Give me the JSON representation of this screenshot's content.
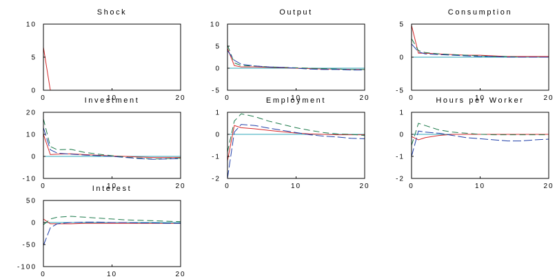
{
  "colors": {
    "red": "#d62728",
    "green": "#1b7a4a",
    "blue": "#1f3ea8",
    "cyan": "#28a6b8",
    "axis": "#000000"
  },
  "chart_data": [
    {
      "type": "line",
      "title": "Shock",
      "xlim": [
        0,
        20
      ],
      "ylim": [
        0,
        10
      ],
      "xticks": [
        "0",
        "10",
        "20"
      ],
      "yticks": [
        "0",
        "5",
        "10"
      ],
      "series": [
        {
          "color": "red",
          "dash": "solid",
          "x": [
            0,
            1,
            2,
            20
          ],
          "y": [
            6.5,
            0,
            0,
            0
          ]
        },
        {
          "color": "cyan",
          "dash": "solid",
          "x": [
            0,
            20
          ],
          "y": [
            0,
            0
          ]
        }
      ]
    },
    {
      "type": "line",
      "title": "Output",
      "xlim": [
        0,
        20
      ],
      "ylim": [
        -5,
        10
      ],
      "xticks": [
        "0",
        "10",
        "20"
      ],
      "yticks": [
        "-5",
        "0",
        "5",
        "10"
      ],
      "series": [
        {
          "color": "cyan",
          "dash": "solid",
          "x": [
            0,
            20
          ],
          "y": [
            0,
            0
          ]
        },
        {
          "color": "red",
          "dash": "solid",
          "x": [
            0,
            1,
            2,
            4,
            6,
            8,
            10,
            12,
            14,
            16,
            18,
            20
          ],
          "y": [
            4.5,
            0.6,
            0.3,
            0.3,
            0.2,
            0.1,
            0,
            -0.1,
            -0.2,
            -0.2,
            -0.3,
            -0.3
          ]
        },
        {
          "color": "green",
          "dash": "dash",
          "x": [
            0,
            1,
            2,
            4,
            6,
            8,
            10,
            12,
            14,
            16,
            18,
            20
          ],
          "y": [
            5.2,
            1.2,
            0.6,
            0.5,
            0.3,
            0.2,
            0.1,
            0,
            -0.1,
            -0.2,
            -0.3,
            -0.3
          ]
        },
        {
          "color": "blue",
          "dash": "longdash",
          "x": [
            0,
            1,
            2,
            4,
            6,
            8,
            10,
            12,
            14,
            16,
            18,
            20
          ],
          "y": [
            4.0,
            1.8,
            0.9,
            0.5,
            0.3,
            0.2,
            0,
            -0.2,
            -0.3,
            -0.3,
            -0.4,
            -0.4
          ]
        }
      ]
    },
    {
      "type": "line",
      "title": "Consumption",
      "xlim": [
        0,
        20
      ],
      "ylim": [
        -5,
        5
      ],
      "xticks": [
        "0",
        "10",
        "20"
      ],
      "yticks": [
        "-5",
        "0",
        "5"
      ],
      "series": [
        {
          "color": "cyan",
          "dash": "solid",
          "x": [
            0,
            20
          ],
          "y": [
            0,
            0
          ]
        },
        {
          "color": "red",
          "dash": "solid",
          "x": [
            0,
            1,
            2,
            4,
            6,
            8,
            10,
            12,
            14,
            16,
            18,
            20
          ],
          "y": [
            4.8,
            0.6,
            0.6,
            0.5,
            0.4,
            0.3,
            0.3,
            0.2,
            0.1,
            0.1,
            0.1,
            0.1
          ]
        },
        {
          "color": "green",
          "dash": "dash",
          "x": [
            0,
            1,
            2,
            4,
            6,
            8,
            10,
            12,
            14,
            16,
            18,
            20
          ],
          "y": [
            2.8,
            1.0,
            0.7,
            0.5,
            0.4,
            0.3,
            0.2,
            0.1,
            0.1,
            0.0,
            0.0,
            0.0
          ]
        },
        {
          "color": "blue",
          "dash": "longdash",
          "x": [
            0,
            1,
            2,
            4,
            6,
            8,
            10,
            12,
            14,
            16,
            18,
            20
          ],
          "y": [
            2.0,
            0.8,
            0.5,
            0.4,
            0.3,
            0.2,
            0.1,
            0.1,
            0.0,
            0.0,
            0.0,
            0.0
          ]
        }
      ]
    },
    {
      "type": "line",
      "title": "Investment",
      "xlim": [
        0,
        20
      ],
      "ylim": [
        -10,
        20
      ],
      "xticks": [
        "0",
        "10",
        "20"
      ],
      "yticks": [
        "-10",
        "0",
        "10",
        "20"
      ],
      "series": [
        {
          "color": "cyan",
          "dash": "solid",
          "x": [
            0,
            20
          ],
          "y": [
            0,
            0
          ]
        },
        {
          "color": "red",
          "dash": "solid",
          "x": [
            0,
            1,
            2,
            4,
            6,
            8,
            10,
            12,
            14,
            16,
            18,
            20
          ],
          "y": [
            10.0,
            0.8,
            1.0,
            1.2,
            0.8,
            0.5,
            0.2,
            0,
            -0.3,
            -0.5,
            -0.5,
            -0.5
          ]
        },
        {
          "color": "green",
          "dash": "dash",
          "x": [
            0,
            1,
            2,
            4,
            6,
            8,
            10,
            12,
            14,
            16,
            18,
            20
          ],
          "y": [
            17.0,
            4.5,
            3.0,
            3.2,
            1.8,
            1.0,
            0.3,
            -0.3,
            -0.8,
            -1.2,
            -1.0,
            -0.8
          ]
        },
        {
          "color": "blue",
          "dash": "longdash",
          "x": [
            0,
            1,
            2,
            4,
            6,
            8,
            10,
            12,
            14,
            16,
            18,
            20
          ],
          "y": [
            13.0,
            3.0,
            1.5,
            1.0,
            0.6,
            0.3,
            0.0,
            -0.5,
            -1.0,
            -1.3,
            -1.2,
            -1.0
          ]
        }
      ]
    },
    {
      "type": "line",
      "title": "Employment",
      "xlim": [
        0,
        20
      ],
      "ylim": [
        -2,
        1
      ],
      "xticks": [
        "0",
        "10",
        "20"
      ],
      "yticks": [
        "-2",
        "-1",
        "0",
        "1"
      ],
      "series": [
        {
          "color": "cyan",
          "dash": "solid",
          "x": [
            0,
            20
          ],
          "y": [
            0,
            0
          ]
        },
        {
          "color": "red",
          "dash": "solid",
          "x": [
            0,
            1,
            2,
            4,
            6,
            8,
            10,
            12,
            14,
            16,
            18,
            20
          ],
          "y": [
            -1.2,
            0.4,
            0.3,
            0.25,
            0.18,
            0.12,
            0.06,
            0.02,
            0.0,
            -0.02,
            -0.02,
            -0.02
          ]
        },
        {
          "color": "green",
          "dash": "dash",
          "x": [
            0,
            1,
            2,
            4,
            6,
            8,
            10,
            12,
            14,
            16,
            18,
            20
          ],
          "y": [
            -0.8,
            0.6,
            0.93,
            0.8,
            0.6,
            0.45,
            0.3,
            0.18,
            0.08,
            0.02,
            0.0,
            -0.05
          ]
        },
        {
          "color": "blue",
          "dash": "longdash",
          "x": [
            0,
            1,
            2,
            4,
            6,
            8,
            10,
            12,
            14,
            16,
            18,
            20
          ],
          "y": [
            -2.0,
            0.1,
            0.45,
            0.4,
            0.28,
            0.18,
            0.08,
            -0.02,
            -0.08,
            -0.12,
            -0.18,
            -0.2
          ]
        }
      ]
    },
    {
      "type": "line",
      "title": "Hours per Worker",
      "xlim": [
        0,
        20
      ],
      "ylim": [
        -2,
        1
      ],
      "xticks": [
        "0",
        "10",
        "20"
      ],
      "yticks": [
        "-2",
        "-1",
        "0",
        "1"
      ],
      "series": [
        {
          "color": "cyan",
          "dash": "solid",
          "x": [
            0,
            20
          ],
          "y": [
            0,
            0
          ]
        },
        {
          "color": "red",
          "dash": "solid",
          "x": [
            0,
            1,
            2,
            4,
            6,
            8,
            10,
            12,
            14,
            16,
            18,
            20
          ],
          "y": [
            -0.1,
            -0.25,
            -0.15,
            -0.05,
            0.0,
            0.0,
            0.0,
            0.0,
            0.0,
            0.0,
            0.0,
            0.0
          ]
        },
        {
          "color": "green",
          "dash": "dash",
          "x": [
            0,
            1,
            2,
            4,
            6,
            8,
            10,
            12,
            14,
            16,
            18,
            20
          ],
          "y": [
            -0.5,
            0.5,
            0.4,
            0.2,
            0.1,
            0.05,
            0.0,
            -0.02,
            -0.02,
            -0.02,
            -0.02,
            -0.02
          ]
        },
        {
          "color": "blue",
          "dash": "longdash",
          "x": [
            0,
            1,
            2,
            4,
            6,
            8,
            10,
            12,
            14,
            16,
            18,
            20
          ],
          "y": [
            -1.0,
            0.15,
            0.1,
            0.05,
            -0.05,
            -0.15,
            -0.2,
            -0.25,
            -0.3,
            -0.3,
            -0.25,
            -0.22
          ]
        }
      ]
    },
    {
      "type": "line",
      "title": "Interest",
      "xlim": [
        0,
        20
      ],
      "ylim": [
        -100,
        50
      ],
      "xticks": [
        "0",
        "10",
        "20"
      ],
      "yticks": [
        "-100",
        "-50",
        "0",
        "50"
      ],
      "series": [
        {
          "color": "cyan",
          "dash": "solid",
          "x": [
            0,
            20
          ],
          "y": [
            0,
            0
          ]
        },
        {
          "color": "red",
          "dash": "solid",
          "x": [
            0,
            1,
            2,
            4,
            6,
            8,
            10,
            12,
            14,
            16,
            18,
            20
          ],
          "y": [
            8,
            -3,
            -3,
            -3,
            -2,
            -2,
            -2,
            -2,
            -2,
            -2,
            -2,
            -2
          ]
        },
        {
          "color": "green",
          "dash": "dash",
          "x": [
            0,
            1,
            2,
            4,
            6,
            8,
            10,
            12,
            14,
            16,
            18,
            20
          ],
          "y": [
            -5,
            8,
            12,
            14,
            12,
            10,
            8,
            6,
            5,
            4,
            3,
            2
          ]
        },
        {
          "color": "blue",
          "dash": "longdash",
          "x": [
            0,
            1,
            2,
            4,
            6,
            8,
            10,
            12,
            14,
            16,
            18,
            20
          ],
          "y": [
            -52,
            -12,
            -3,
            0,
            1,
            1,
            0,
            0,
            -1,
            -1,
            -2,
            -2
          ]
        }
      ]
    }
  ]
}
